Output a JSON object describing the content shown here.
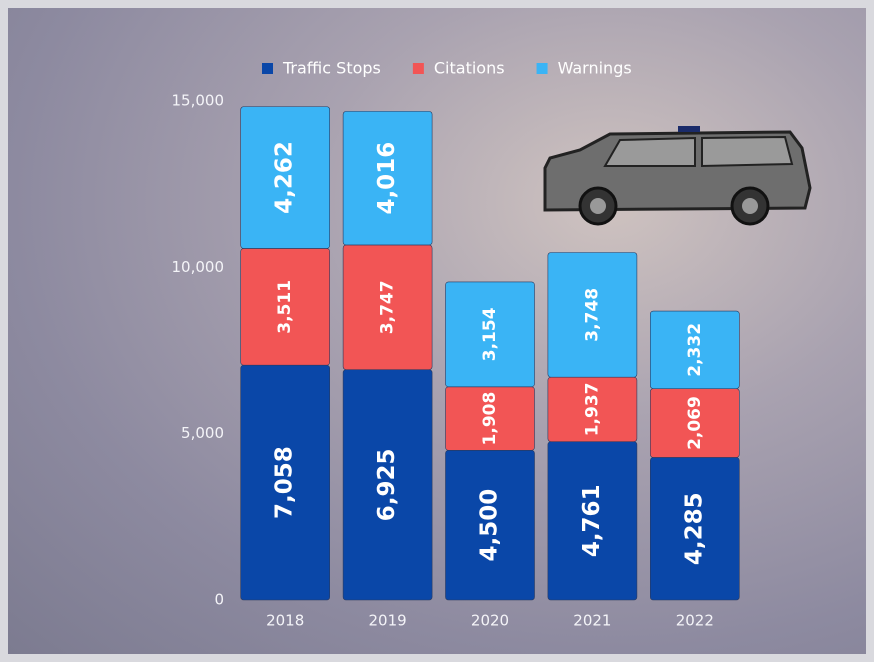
{
  "chart_data": {
    "type": "stacked-bar",
    "categories": [
      "2018",
      "2019",
      "2020",
      "2021",
      "2022"
    ],
    "series": [
      {
        "name": "Traffic Stops",
        "color": "#0a47a8",
        "values": [
          7058,
          6925,
          4500,
          4761,
          4285
        ],
        "value_labels": [
          "7,058",
          "6,925",
          "4,500",
          "4,761",
          "4,285"
        ]
      },
      {
        "name": "Citations",
        "color": "#f25555",
        "values": [
          3511,
          3747,
          1908,
          1937,
          2069
        ],
        "value_labels": [
          "3,511",
          "3,747",
          "1,908",
          "1,937",
          "2,069"
        ]
      },
      {
        "name": "Warnings",
        "color": "#3ab4f5",
        "values": [
          4262,
          4016,
          3154,
          3748,
          2332
        ],
        "value_labels": [
          "4,262",
          "4,016",
          "3,154",
          "3,748",
          "2,332"
        ]
      }
    ],
    "ylim": [
      0,
      15000
    ],
    "yticks": [
      0,
      {
        "value": 5000,
        "label": "5,000"
      },
      {
        "value": 10000,
        "label": "10,000"
      },
      {
        "value": 15000,
        "label": "15,000"
      }
    ],
    "grid": false
  }
}
